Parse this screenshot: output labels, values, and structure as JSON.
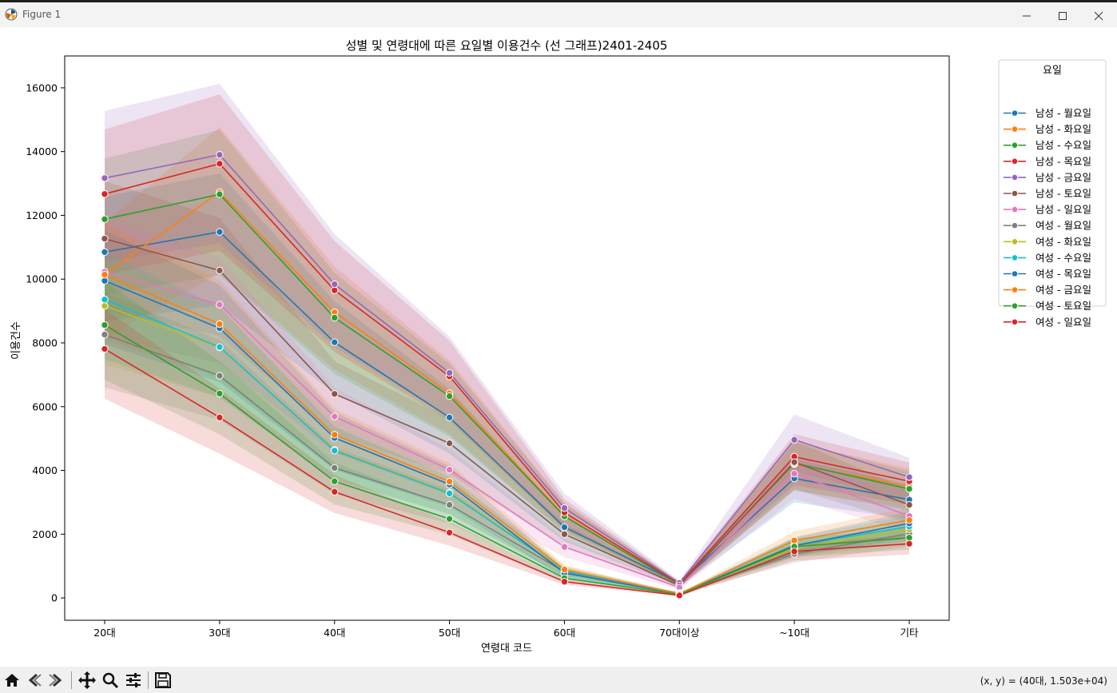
{
  "window": {
    "title": "Figure 1",
    "minimize_icon": "minimize-icon",
    "maximize_icon": "maximize-icon",
    "close_icon": "close-icon"
  },
  "toolbar": {
    "buttons": [
      "home-icon",
      "back-icon",
      "forward-icon",
      "pan-icon",
      "zoom-icon",
      "configure-icon",
      "save-icon"
    ],
    "coords": "(x, y) = (40대, 1.503e+04)"
  },
  "chart_data": {
    "type": "line",
    "title": "성별 및 연령대에 따른 요일별 이용건수 (선 그래프)2401-2405",
    "xlabel": "연령대 코드",
    "ylabel": "이용건수",
    "categories": [
      "20대",
      "30대",
      "40대",
      "50대",
      "60대",
      "70대이상",
      "~10대",
      "기타"
    ],
    "ylim": [
      -700,
      17000
    ],
    "yticks": [
      0,
      2000,
      4000,
      6000,
      8000,
      10000,
      12000,
      14000,
      16000
    ],
    "grid": false,
    "confidence_bands": true,
    "legend": {
      "title": "요일",
      "placement": "outside-right-top"
    },
    "series": [
      {
        "name": "남성 - 월요일",
        "color": "#1f77b4",
        "values": [
          10850,
          11480,
          8020,
          5660,
          2220,
          450,
          3750,
          3080
        ]
      },
      {
        "name": "남성 - 화요일",
        "color": "#ff7f0e",
        "values": [
          10150,
          12730,
          8960,
          6420,
          2580,
          430,
          4200,
          3500
        ]
      },
      {
        "name": "남성 - 수요일",
        "color": "#2ca02c",
        "values": [
          11880,
          12660,
          8790,
          6330,
          2560,
          420,
          4230,
          3420
        ]
      },
      {
        "name": "남성 - 목요일",
        "color": "#d62728",
        "values": [
          12670,
          13620,
          9650,
          6950,
          2680,
          440,
          4430,
          3660
        ]
      },
      {
        "name": "남성 - 금요일",
        "color": "#9467bd",
        "values": [
          13170,
          13900,
          9840,
          7060,
          2820,
          470,
          4960,
          3790
        ]
      },
      {
        "name": "남성 - 토요일",
        "color": "#8c564b",
        "values": [
          11270,
          10270,
          6400,
          4850,
          2000,
          390,
          4260,
          2920
        ]
      },
      {
        "name": "남성 - 일요일",
        "color": "#e377c2",
        "values": [
          10230,
          9200,
          5690,
          4020,
          1600,
          330,
          3900,
          2570
        ]
      },
      {
        "name": "여성 - 월요일",
        "color": "#7f7f7f",
        "values": [
          8260,
          6970,
          4080,
          2920,
          820,
          150,
          1380,
          2020
        ]
      },
      {
        "name": "여성 - 화요일",
        "color": "#bcbd22",
        "values": [
          9160,
          7860,
          4640,
          3300,
          870,
          140,
          1560,
          2150
        ]
      },
      {
        "name": "여성 - 수요일",
        "color": "#17becf",
        "values": [
          9360,
          7870,
          4620,
          3280,
          840,
          140,
          1640,
          2240
        ]
      },
      {
        "name": "여성 - 목요일",
        "color": "#1f77b4",
        "values": [
          9950,
          8460,
          5020,
          3560,
          780,
          130,
          1640,
          2340
        ]
      },
      {
        "name": "여성 - 금요일",
        "color": "#ff7f0e",
        "values": [
          10140,
          8590,
          5120,
          3650,
          890,
          130,
          1800,
          2440
        ]
      },
      {
        "name": "여성 - 토요일",
        "color": "#2ca02c",
        "values": [
          8560,
          6410,
          3660,
          2480,
          620,
          110,
          1610,
          1890
        ]
      },
      {
        "name": "여성 - 일요일",
        "color": "#d62728",
        "values": [
          7810,
          5660,
          3330,
          2050,
          510,
          80,
          1460,
          1700
        ]
      }
    ]
  }
}
